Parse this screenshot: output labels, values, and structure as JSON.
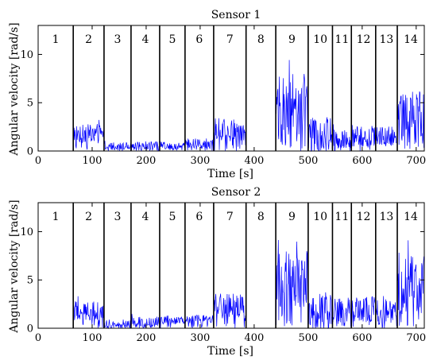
{
  "chart_data": [
    {
      "type": "line",
      "title": "Sensor 1",
      "xlabel": "Time [s]",
      "ylabel": "Angular velocity [rad/s]",
      "xlim": [
        0,
        715
      ],
      "ylim": [
        0,
        13
      ],
      "xticks": [
        0,
        100,
        200,
        300,
        400,
        500,
        600,
        700
      ],
      "yticks": [
        0,
        5,
        10
      ],
      "grid": false,
      "series_color": "#0000ff",
      "boundaries": [
        65,
        122,
        172,
        225,
        272,
        325,
        385,
        440,
        500,
        545,
        580,
        625,
        665
      ],
      "segments": [
        {
          "label": "1",
          "x": [
            0,
            65
          ],
          "mean": 0.0,
          "amp": 0.05,
          "peak": 0.1
        },
        {
          "label": "2",
          "x": [
            65,
            122
          ],
          "mean": 1.8,
          "amp": 1.0,
          "peak": 4.0
        },
        {
          "label": "3",
          "x": [
            122,
            172
          ],
          "mean": 0.5,
          "amp": 0.4,
          "peak": 1.3
        },
        {
          "label": "4",
          "x": [
            172,
            225
          ],
          "mean": 0.5,
          "amp": 0.5,
          "peak": 1.6
        },
        {
          "label": "5",
          "x": [
            225,
            272
          ],
          "mean": 0.6,
          "amp": 0.4,
          "peak": 1.2
        },
        {
          "label": "6",
          "x": [
            272,
            325
          ],
          "mean": 0.8,
          "amp": 0.5,
          "peak": 1.7
        },
        {
          "label": "7",
          "x": [
            325,
            385
          ],
          "mean": 2.2,
          "amp": 1.2,
          "peak": 4.5
        },
        {
          "label": "8",
          "x": [
            385,
            440
          ],
          "mean": 0.0,
          "amp": 0.05,
          "peak": 0.1
        },
        {
          "label": "9",
          "x": [
            440,
            500
          ],
          "mean": 5.0,
          "amp": 3.0,
          "peak": 10.0
        },
        {
          "label": "10",
          "x": [
            500,
            545
          ],
          "mean": 1.7,
          "amp": 1.8,
          "peak": 3.7
        },
        {
          "label": "11",
          "x": [
            545,
            580
          ],
          "mean": 1.2,
          "amp": 1.2,
          "peak": 3.0
        },
        {
          "label": "12",
          "x": [
            580,
            625
          ],
          "mean": 1.6,
          "amp": 1.2,
          "peak": 3.4
        },
        {
          "label": "13",
          "x": [
            625,
            665
          ],
          "mean": 1.6,
          "amp": 1.1,
          "peak": 3.0
        },
        {
          "label": "14",
          "x": [
            665,
            715
          ],
          "mean": 3.8,
          "amp": 2.5,
          "peak": 10.0
        }
      ]
    },
    {
      "type": "line",
      "title": "Sensor 2",
      "xlabel": "Time [s]",
      "ylabel": "Angular velocity [rad/s]",
      "xlim": [
        0,
        715
      ],
      "ylim": [
        0,
        13
      ],
      "xticks": [
        0,
        100,
        200,
        300,
        400,
        500,
        600,
        700
      ],
      "yticks": [
        0,
        5,
        10
      ],
      "grid": false,
      "series_color": "#0000ff",
      "boundaries": [
        65,
        122,
        172,
        225,
        272,
        325,
        385,
        440,
        500,
        545,
        580,
        625,
        665
      ],
      "segments": [
        {
          "label": "1",
          "x": [
            0,
            65
          ],
          "mean": 0.0,
          "amp": 0.05,
          "peak": 0.1
        },
        {
          "label": "2",
          "x": [
            65,
            122
          ],
          "mean": 1.8,
          "amp": 1.0,
          "peak": 4.0
        },
        {
          "label": "3",
          "x": [
            122,
            172
          ],
          "mean": 0.4,
          "amp": 0.5,
          "peak": 1.3
        },
        {
          "label": "4",
          "x": [
            172,
            225
          ],
          "mean": 0.6,
          "amp": 0.6,
          "peak": 1.8
        },
        {
          "label": "5",
          "x": [
            225,
            272
          ],
          "mean": 0.8,
          "amp": 0.4,
          "peak": 1.3
        },
        {
          "label": "6",
          "x": [
            272,
            325
          ],
          "mean": 0.9,
          "amp": 0.5,
          "peak": 1.8
        },
        {
          "label": "7",
          "x": [
            325,
            385
          ],
          "mean": 2.3,
          "amp": 1.3,
          "peak": 5.0
        },
        {
          "label": "8",
          "x": [
            385,
            440
          ],
          "mean": 0.0,
          "amp": 0.05,
          "peak": 0.1
        },
        {
          "label": "9",
          "x": [
            440,
            500
          ],
          "mean": 5.0,
          "amp": 3.0,
          "peak": 10.0
        },
        {
          "label": "10",
          "x": [
            500,
            545
          ],
          "mean": 1.8,
          "amp": 2.0,
          "peak": 4.8
        },
        {
          "label": "11",
          "x": [
            545,
            580
          ],
          "mean": 1.7,
          "amp": 1.5,
          "peak": 4.0
        },
        {
          "label": "12",
          "x": [
            580,
            625
          ],
          "mean": 2.0,
          "amp": 1.4,
          "peak": 4.5
        },
        {
          "label": "13",
          "x": [
            625,
            665
          ],
          "mean": 2.0,
          "amp": 1.4,
          "peak": 4.3
        },
        {
          "label": "14",
          "x": [
            665,
            715
          ],
          "mean": 4.5,
          "amp": 3.0,
          "peak": 10.0
        }
      ]
    }
  ]
}
